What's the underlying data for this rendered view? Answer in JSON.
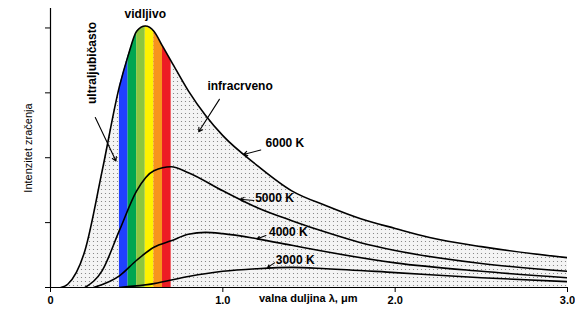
{
  "chart_data": {
    "type": "line",
    "xlabel": "valna duljina λ, μm",
    "ylabel": "Intenzitet zračenja",
    "xlim": [
      0,
      3
    ],
    "xticks": [
      0,
      {
        "value": 1,
        "label": "1.0"
      },
      {
        "value": 2,
        "label": "2.0"
      },
      {
        "value": 3,
        "label": "3.0"
      }
    ],
    "ylim": [
      0,
      4.3
    ],
    "yticks": [
      0,
      1,
      2,
      3,
      4
    ],
    "tick_labels": "x",
    "grid": false,
    "series": [
      {
        "name": "6000 K",
        "color": "#000000",
        "x": [
          0.06,
          0.1,
          0.2,
          0.3,
          0.4,
          0.45,
          0.5,
          0.55,
          0.6,
          0.65,
          0.7,
          0.8,
          0.9,
          1.0,
          1.2,
          1.4,
          1.6,
          1.8,
          2.0,
          2.2,
          2.5,
          2.8,
          3.0
        ],
        "values": [
          0,
          0.05,
          0.57,
          1.8,
          3.1,
          3.57,
          3.95,
          4.03,
          3.95,
          3.72,
          3.49,
          3.03,
          2.65,
          2.34,
          1.88,
          1.49,
          1.26,
          1.06,
          0.91,
          0.77,
          0.63,
          0.52,
          0.46
        ]
      },
      {
        "name": "5000 K",
        "color": "#000000",
        "x": [
          0.2,
          0.3,
          0.4,
          0.5,
          0.6,
          0.7,
          0.8,
          1.0,
          1.2,
          1.4,
          1.6,
          1.8,
          2.0,
          2.5,
          3.0
        ],
        "values": [
          0,
          0.26,
          0.88,
          1.49,
          1.8,
          1.86,
          1.77,
          1.49,
          1.23,
          1.03,
          0.85,
          0.69,
          0.57,
          0.37,
          0.25
        ]
      },
      {
        "name": "4000 K",
        "color": "#000000",
        "x": [
          0.25,
          0.4,
          0.5,
          0.6,
          0.7,
          0.8,
          0.9,
          1.0,
          1.2,
          1.4,
          1.6,
          2.0,
          2.5,
          3.0
        ],
        "values": [
          0,
          0.18,
          0.42,
          0.62,
          0.72,
          0.82,
          0.85,
          0.83,
          0.75,
          0.65,
          0.55,
          0.38,
          0.25,
          0.15
        ]
      },
      {
        "name": "3000 K",
        "color": "#000000",
        "x": [
          0.4,
          0.6,
          0.8,
          1.0,
          1.2,
          1.4,
          1.6,
          2.0,
          2.5,
          3.0
        ],
        "values": [
          0,
          0.06,
          0.17,
          0.25,
          0.29,
          0.31,
          0.29,
          0.23,
          0.15,
          0.09
        ]
      }
    ],
    "bands": [
      {
        "from": 0.4,
        "to": 0.45,
        "color": "#2040ff"
      },
      {
        "from": 0.45,
        "to": 0.5,
        "color": "#00a651"
      },
      {
        "from": 0.5,
        "to": 0.55,
        "color": "#8dc63f"
      },
      {
        "from": 0.55,
        "to": 0.6,
        "color": "#fff200"
      },
      {
        "from": 0.6,
        "to": 0.65,
        "color": "#f7941d"
      },
      {
        "from": 0.65,
        "to": 0.7,
        "color": "#ed1c24"
      }
    ],
    "annotations": [
      {
        "text": "vidljivo",
        "x": 0.55,
        "y": 4.22
      },
      {
        "text": "ultraljubičasto",
        "x": 0.24,
        "y": 3.46,
        "arrow": {
          "from": [
            0.26,
            2.62
          ],
          "to": [
            0.38,
            1.95
          ]
        }
      },
      {
        "text": "infracrveno",
        "x": 1.1,
        "y": 3.1,
        "arrow": {
          "from": [
            0.98,
            2.9
          ],
          "to": [
            0.86,
            2.4
          ]
        }
      },
      {
        "text": "6000 K",
        "x": 1.36,
        "y": 2.22,
        "arrow": {
          "from": [
            1.22,
            2.12
          ],
          "to": [
            1.12,
            2.05
          ]
        }
      },
      {
        "text": "5000 K",
        "x": 1.3,
        "y": 1.38,
        "arrow": {
          "from": [
            1.18,
            1.34
          ],
          "to": [
            1.1,
            1.36
          ]
        }
      },
      {
        "text": "4000 K",
        "x": 1.38,
        "y": 0.85,
        "arrow": {
          "from": [
            1.25,
            0.8
          ],
          "to": [
            1.2,
            0.75
          ]
        }
      },
      {
        "text": "3000 K",
        "x": 1.42,
        "y": 0.42,
        "arrow": {
          "from": [
            1.3,
            0.38
          ],
          "to": [
            1.26,
            0.31
          ]
        }
      }
    ]
  }
}
